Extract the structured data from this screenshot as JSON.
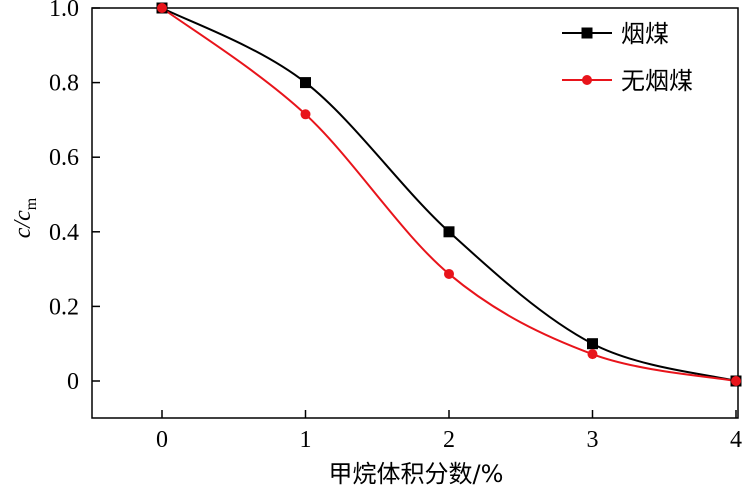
{
  "chart_data": {
    "type": "line",
    "title": "",
    "xlabel": "甲烷体积分数/%",
    "ylabel_main": "c",
    "ylabel_sub": "m",
    "xlim": [
      -0.5,
      4.0
    ],
    "ylim": [
      -0.1,
      1.0
    ],
    "x_ticks": [
      "0",
      "1",
      "2",
      "3",
      "4"
    ],
    "y_ticks": [
      "0",
      "0.2",
      "0.4",
      "0.6",
      "0.8",
      "1.0"
    ],
    "grid": false,
    "legend_position": "top-right",
    "x": [
      0,
      1,
      2,
      3,
      4
    ],
    "series": [
      {
        "name": "烟煤",
        "color": "#000000",
        "marker": "square",
        "values": [
          1.0,
          0.8,
          0.4,
          0.1,
          0.0
        ]
      },
      {
        "name": "无烟煤",
        "color": "#e8141b",
        "marker": "circle",
        "values": [
          1.0,
          0.715,
          0.287,
          0.072,
          0.0
        ]
      }
    ]
  }
}
